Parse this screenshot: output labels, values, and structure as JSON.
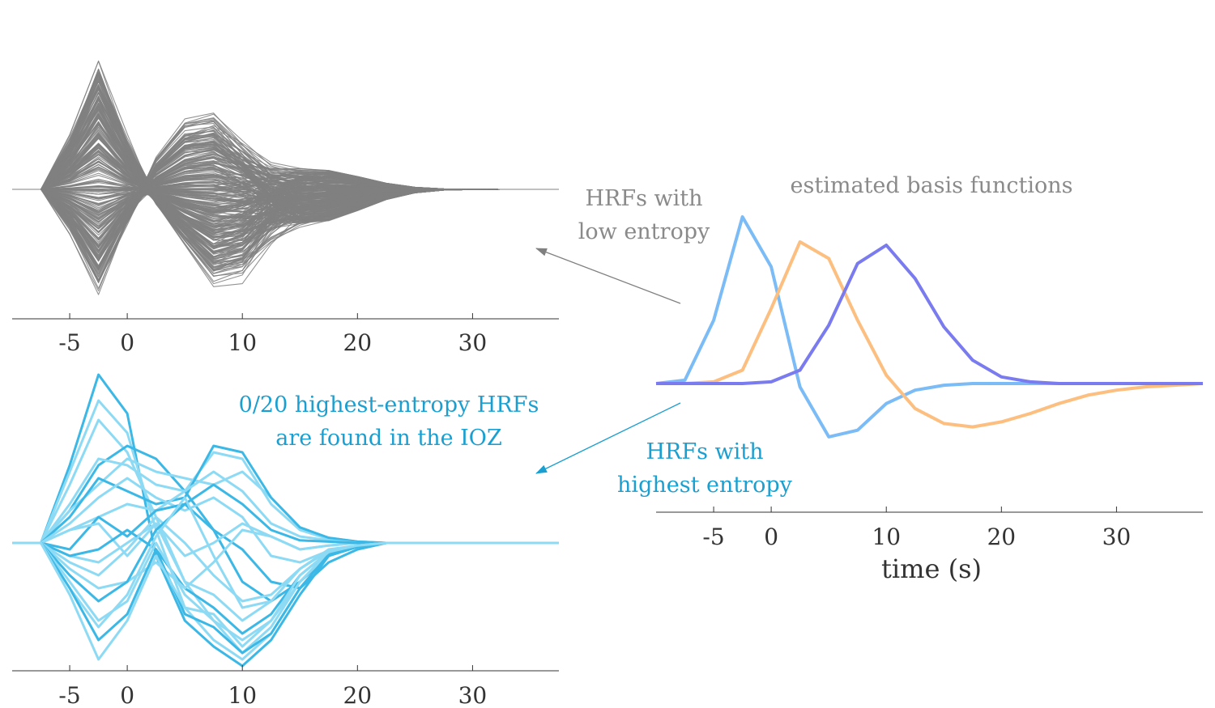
{
  "annotations": {
    "basis_title": "estimated basis functions",
    "low_entropy": [
      "HRFs with",
      "low entropy"
    ],
    "highest_entropy": [
      "HRFs with",
      "highest entropy"
    ],
    "ioz_note": [
      "0/20 highest-entropy HRFs",
      "are found in the IOZ"
    ]
  },
  "colors": {
    "gray": "#808080",
    "gray_text": "#8a8a8a",
    "blue_text": "#1a9fd0",
    "cyan_dark": "#3bb8e6",
    "cyan_light": "#8ddaf5",
    "basis": [
      "#7bbcf7",
      "#fdbf80",
      "#7b7bf0"
    ]
  },
  "chart_data": [
    {
      "type": "line",
      "panel": "low-entropy HRFs",
      "xticks": [
        -5,
        0,
        10,
        20,
        30
      ],
      "xlim": [
        -10,
        37.5
      ],
      "ylim": [
        -1,
        1
      ],
      "x": [
        -10,
        -7.5,
        -5,
        -2.5,
        0,
        2.5,
        5,
        7.5,
        10,
        12.5,
        15,
        17.5,
        20,
        22.5,
        25,
        27.5,
        30,
        32.5,
        35,
        37.5
      ],
      "line_count": 300,
      "series_envelope": {
        "positive_peak_max": 1.0,
        "negative_trough_min": -0.75
      }
    },
    {
      "type": "line",
      "panel": "highest-entropy HRFs",
      "xticks": [
        -5,
        0,
        10,
        20,
        30
      ],
      "xlim": [
        -10,
        37.5
      ],
      "ylim": [
        -1,
        1
      ],
      "x": [
        -10,
        -7.5,
        -5,
        -2.5,
        0,
        2.5,
        5,
        7.5,
        10,
        12.5,
        15,
        17.5,
        20,
        22.5,
        25,
        27.5,
        30,
        32.5,
        35,
        37.5
      ],
      "series": [
        {
          "values": [
            0,
            0,
            0.6,
            1.3,
            1.0,
            -0.1,
            -0.6,
            -0.8,
            -0.95,
            -0.75,
            -0.4,
            -0.1,
            -0.03,
            0,
            0,
            0,
            0,
            0,
            0,
            0
          ]
        },
        {
          "values": [
            0,
            0,
            0.55,
            1.1,
            0.85,
            0.1,
            -0.5,
            -0.75,
            -0.9,
            -0.7,
            -0.35,
            -0.08,
            -0.02,
            0,
            0,
            0,
            0,
            0,
            0,
            0
          ]
        },
        {
          "values": [
            0,
            0,
            0.45,
            0.95,
            0.7,
            0.2,
            -0.3,
            -0.6,
            -0.75,
            -0.6,
            -0.3,
            -0.07,
            -0.02,
            0,
            0,
            0,
            0,
            0,
            0,
            0
          ]
        },
        {
          "values": [
            0,
            0,
            0.25,
            0.6,
            0.75,
            0.65,
            0.4,
            0.1,
            -0.3,
            -0.45,
            -0.3,
            -0.1,
            -0.03,
            0,
            0,
            0,
            0,
            0,
            0,
            0
          ]
        },
        {
          "values": [
            0,
            0,
            0.3,
            0.65,
            0.6,
            0.45,
            0.4,
            0.7,
            0.65,
            0.3,
            0.1,
            0.03,
            0.01,
            0,
            0,
            0,
            0,
            0,
            0,
            0
          ]
        },
        {
          "values": [
            0,
            0,
            0.25,
            0.45,
            0.65,
            0.55,
            0.5,
            0.45,
            0.55,
            0.35,
            0.12,
            0.04,
            0.01,
            0,
            0,
            0,
            0,
            0,
            0,
            0
          ]
        },
        {
          "values": [
            0,
            0,
            0.2,
            0.5,
            0.4,
            0.3,
            0.35,
            0.75,
            0.7,
            0.35,
            0.12,
            0.04,
            0.01,
            0,
            0,
            0,
            0,
            0,
            0,
            0
          ]
        },
        {
          "values": [
            0,
            0,
            0.15,
            0.35,
            0.5,
            0.35,
            0.25,
            0.35,
            0.2,
            -0.1,
            -0.15,
            -0.06,
            -0.02,
            0,
            0,
            0,
            0,
            0,
            0,
            0
          ]
        },
        {
          "values": [
            0,
            0,
            0.1,
            0.2,
            0.3,
            0.25,
            0.4,
            0.55,
            0.4,
            0.15,
            0.05,
            0.02,
            0,
            0,
            0,
            0,
            0,
            0,
            0,
            0
          ]
        },
        {
          "values": [
            0,
            0,
            -0.05,
            0.2,
            0.05,
            0.25,
            0.3,
            0.1,
            -0.05,
            -0.3,
            -0.35,
            -0.15,
            -0.05,
            0,
            0,
            0,
            0,
            0,
            0,
            0
          ]
        },
        {
          "values": [
            0,
            0,
            0.1,
            0.15,
            -0.1,
            0.15,
            -0.3,
            -0.4,
            -0.6,
            -0.45,
            -0.2,
            -0.05,
            -0.02,
            0,
            0,
            0,
            0,
            0,
            0,
            0
          ]
        },
        {
          "values": [
            0,
            0,
            -0.1,
            -0.15,
            0.0,
            0.15,
            -0.1,
            0.0,
            0.15,
            0.05,
            -0.05,
            -0.02,
            0,
            0,
            0,
            0,
            0,
            0,
            0,
            0
          ]
        },
        {
          "values": [
            0,
            0,
            -0.1,
            -0.05,
            0.1,
            -0.05,
            -0.35,
            -0.5,
            -0.7,
            -0.55,
            -0.25,
            -0.07,
            -0.02,
            0,
            0,
            0,
            0,
            0,
            0,
            0
          ]
        },
        {
          "values": [
            0,
            0,
            -0.15,
            -0.25,
            -0.05,
            0.2,
            0.0,
            -0.25,
            -0.45,
            -0.4,
            -0.2,
            -0.06,
            -0.02,
            0,
            0,
            0,
            0,
            0,
            0,
            0
          ]
        },
        {
          "values": [
            0,
            0,
            -0.2,
            -0.35,
            -0.3,
            -0.15,
            -0.35,
            -0.15,
            0.1,
            0.05,
            -0.05,
            -0.02,
            0,
            0,
            0,
            0,
            0,
            0,
            0,
            0
          ]
        },
        {
          "values": [
            0,
            0,
            -0.25,
            -0.45,
            -0.3,
            0.1,
            0.3,
            0.45,
            0.3,
            0.1,
            0.02,
            0.01,
            0,
            0,
            0,
            0,
            0,
            0,
            0,
            0
          ]
        },
        {
          "values": [
            0,
            0,
            -0.3,
            -0.6,
            -0.45,
            0.0,
            -0.4,
            -0.6,
            -0.85,
            -0.65,
            -0.3,
            -0.08,
            -0.02,
            0,
            0,
            0,
            0,
            0,
            0,
            0
          ]
        },
        {
          "values": [
            0,
            0,
            -0.35,
            -0.65,
            -0.4,
            0.05,
            0.35,
            -0.1,
            -0.5,
            -0.45,
            -0.2,
            -0.06,
            -0.02,
            0,
            0,
            0,
            0,
            0,
            0,
            0
          ]
        },
        {
          "values": [
            0,
            0,
            -0.35,
            -0.75,
            -0.55,
            -0.05,
            -0.55,
            -0.65,
            -0.85,
            -0.7,
            -0.35,
            -0.09,
            -0.03,
            0,
            0,
            0,
            0,
            0,
            0,
            0
          ]
        },
        {
          "values": [
            0,
            0,
            -0.4,
            -0.9,
            -0.6,
            -0.1,
            -0.5,
            -0.55,
            -0.8,
            -0.6,
            -0.25,
            -0.07,
            -0.02,
            0,
            0,
            0,
            0,
            0,
            0,
            0
          ]
        }
      ]
    },
    {
      "type": "line",
      "panel": "estimated basis functions",
      "xlabel": "time (s)",
      "xticks": [
        -5,
        0,
        10,
        20,
        30
      ],
      "xlim": [
        -10,
        37.5
      ],
      "ylim": [
        -1,
        1.6
      ],
      "x": [
        -10,
        -7.5,
        -5,
        -2.5,
        0,
        2.5,
        5,
        7.5,
        10,
        12.5,
        15,
        17.5,
        20,
        22.5,
        25,
        27.5,
        30,
        32.5,
        35,
        37.5
      ],
      "series": [
        {
          "values": [
            0,
            0.02,
            0.38,
            1.0,
            0.7,
            -0.02,
            -0.32,
            -0.28,
            -0.12,
            -0.04,
            -0.01,
            0,
            0,
            0,
            0,
            0,
            0,
            0,
            0,
            0
          ]
        },
        {
          "values": [
            0,
            0,
            0.01,
            0.08,
            0.45,
            0.85,
            0.75,
            0.38,
            0.05,
            -0.15,
            -0.24,
            -0.26,
            -0.23,
            -0.18,
            -0.12,
            -0.07,
            -0.04,
            -0.02,
            -0.01,
            0
          ]
        },
        {
          "values": [
            0,
            0,
            0,
            0,
            0.01,
            0.08,
            0.35,
            0.72,
            0.83,
            0.63,
            0.34,
            0.14,
            0.04,
            0.01,
            0,
            0,
            0,
            0,
            0,
            0
          ]
        }
      ]
    }
  ]
}
